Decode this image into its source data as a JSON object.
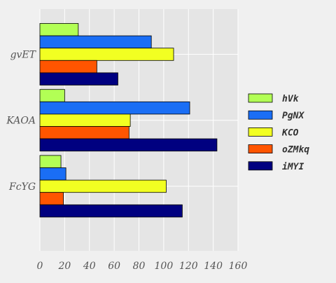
{
  "chart_data": {
    "type": "bar",
    "orientation": "horizontal",
    "categories": [
      "gvET",
      "KAOA",
      "FcYG"
    ],
    "series": [
      {
        "name": "hVk",
        "color": "#b2ff55",
        "values": [
          31,
          20,
          17
        ]
      },
      {
        "name": "PgNX",
        "color": "#1a6ef5",
        "values": [
          90,
          121,
          21
        ]
      },
      {
        "name": "KCO",
        "color": "#f2ff22",
        "values": [
          108,
          73,
          102
        ]
      },
      {
        "name": "oZMkq",
        "color": "#ff5500",
        "values": [
          46,
          72,
          19
        ]
      },
      {
        "name": "iMYI",
        "color": "#000080",
        "values": [
          63,
          143,
          115
        ]
      }
    ],
    "xlim": [
      0,
      160
    ],
    "xticks": [
      "0",
      "20",
      "40",
      "60",
      "80",
      "100",
      "120",
      "140",
      "160"
    ],
    "title": "",
    "xlabel": "",
    "ylabel": "",
    "grid": true,
    "legend_position": "right"
  }
}
